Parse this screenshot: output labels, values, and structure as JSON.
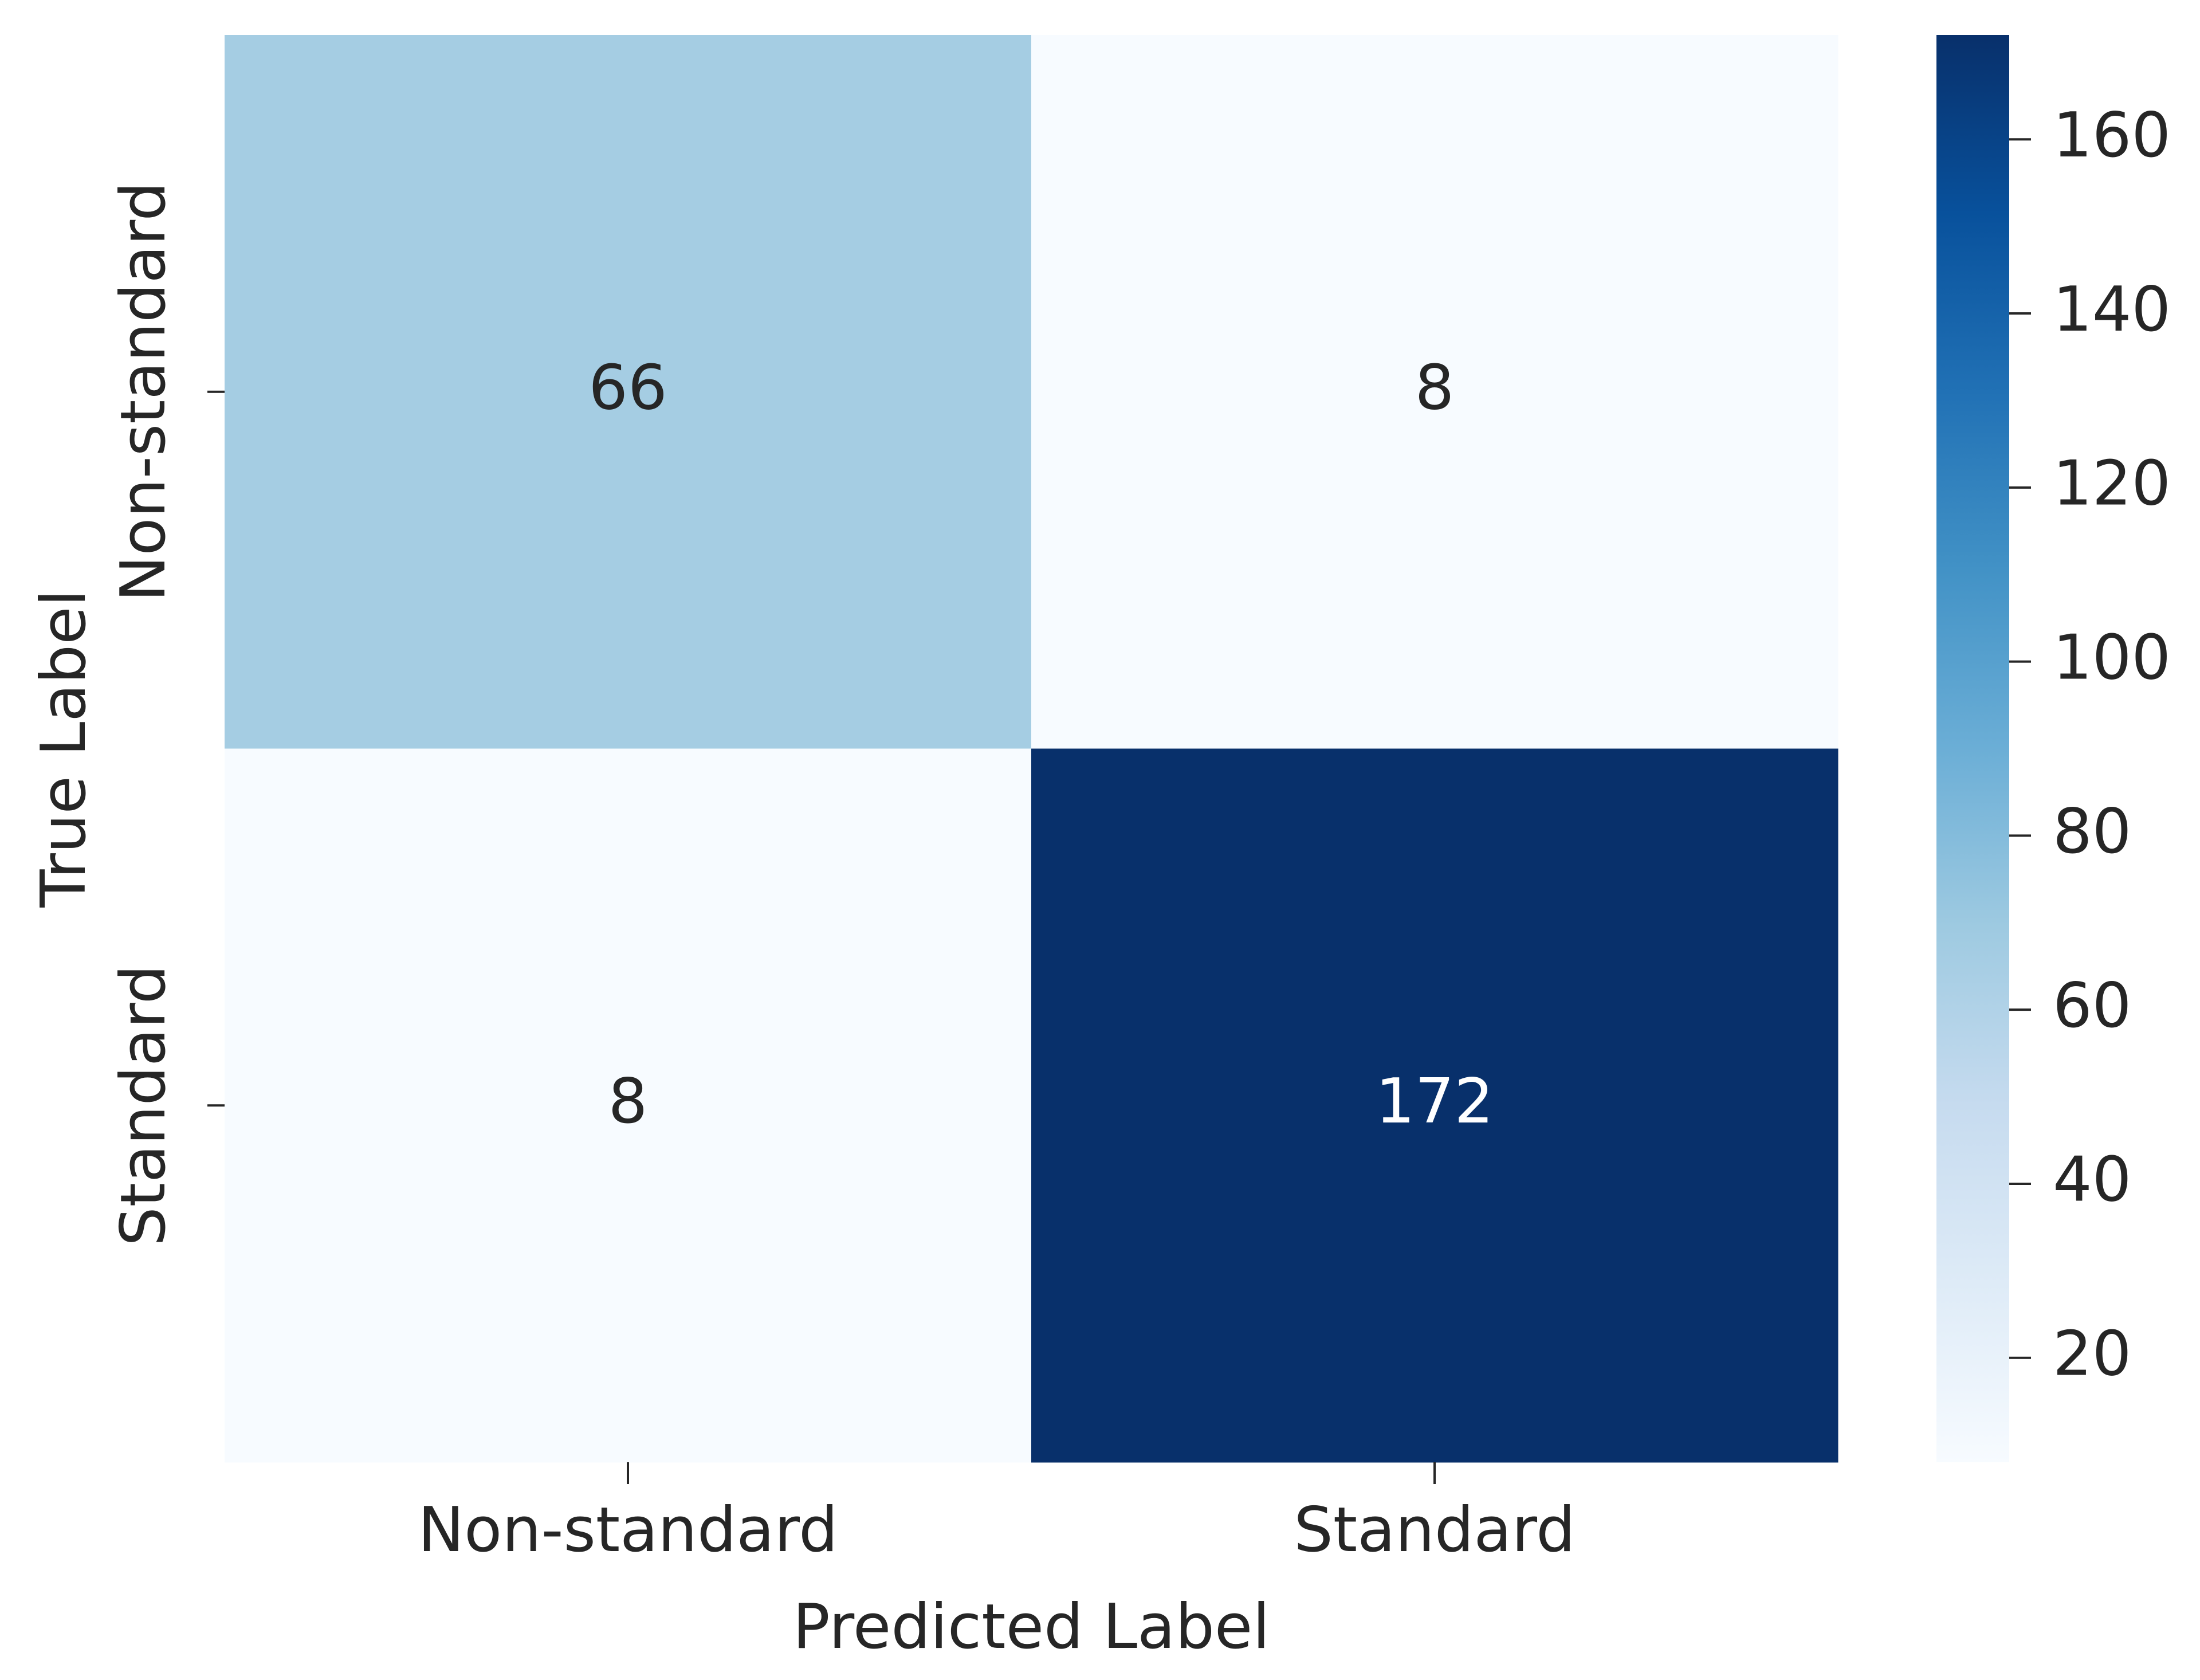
{
  "chart_data": {
    "type": "heatmap",
    "x_label": "Predicted Label",
    "y_label": "True Label",
    "x_categories": [
      "Non-standard",
      "Standard"
    ],
    "y_categories": [
      "Non-standard",
      "Standard"
    ],
    "values": [
      [
        66,
        8
      ],
      [
        8,
        172
      ]
    ],
    "zlim": [
      8,
      172
    ],
    "zticks": [
      20,
      40,
      60,
      80,
      100,
      120,
      140,
      160
    ],
    "colormap": [
      "#f7fbff",
      "#deebf7",
      "#c6dbef",
      "#9ecae1",
      "#6baed6",
      "#4292c6",
      "#2171b5",
      "#08519c",
      "#08306b"
    ]
  }
}
